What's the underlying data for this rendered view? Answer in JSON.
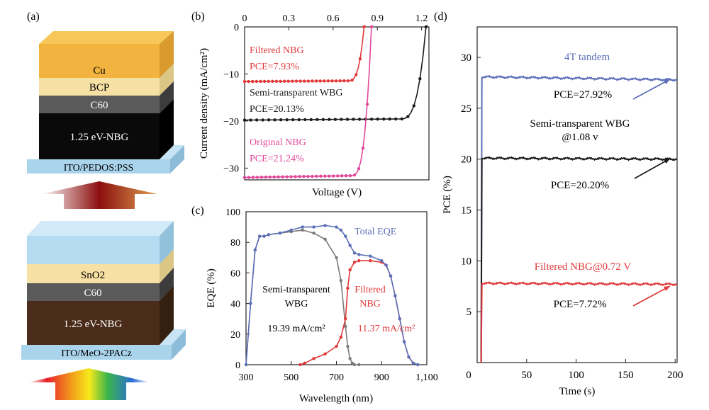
{
  "panels": {
    "a": {
      "label": "(a)",
      "top_stack": {
        "layers": [
          "Cu",
          "BCP",
          "C60",
          "1.25 eV-NBG"
        ],
        "substrate": "ITO/PEDOS:PSS"
      },
      "bottom_stack": {
        "layers": [
          "SnO2",
          "C60",
          "1.25 eV-NBG"
        ],
        "substrate": "ITO/MeO-2PACz"
      }
    },
    "b": {
      "label": "(b)"
    },
    "c": {
      "label": "(c)"
    },
    "d": {
      "label": "(d)"
    }
  },
  "colors": {
    "red": "#e0393a",
    "pink": "#e0489a",
    "black": "#1a1a1a",
    "gray": "#7a7a7a",
    "blue": "#5b6fb8",
    "cu": "#f2b43f",
    "bcp": "#f6e0a4",
    "c60": "#555555",
    "nbg_top": "#0a0a0a",
    "nbg_bottom": "#4b2c1a",
    "ito": "#a9d4ec"
  },
  "chart_data": [
    {
      "id": "b",
      "type": "line",
      "xlabel": "Voltage (V)",
      "ylabel": "Current density (mA/cm²)",
      "xlim": [
        0,
        1.25
      ],
      "ylim": [
        -32.5,
        0
      ],
      "xticks": [
        0,
        0.3,
        0.6,
        0.9,
        1.2
      ],
      "xtick_labels": [
        "0",
        "0.3",
        "0.6",
        "0.9",
        "1.2"
      ],
      "yticks": [
        0,
        -10,
        -20,
        -30
      ],
      "ytick_labels": [
        "0",
        "−10",
        "−20",
        "−30"
      ],
      "series": [
        {
          "name": "Filtered NBG",
          "pce": "PCE=7.93%",
          "jsc": -11.6,
          "voc": 0.81,
          "knee": 0.7,
          "color": "red"
        },
        {
          "name": "Semi-transparent WBG",
          "pce": "PCE=20.13%",
          "jsc": -19.8,
          "voc": 1.23,
          "knee": 1.05,
          "color": "black"
        },
        {
          "name": "Original NBG",
          "pce": "PCE=21.24%",
          "jsc": -32.0,
          "voc": 0.86,
          "knee": 0.72,
          "color": "pink"
        }
      ]
    },
    {
      "id": "c",
      "type": "line",
      "xlabel": "Wavelength (nm)",
      "ylabel": "EQE (%)",
      "xlim": [
        300,
        1100
      ],
      "ylim": [
        0,
        100
      ],
      "xticks": [
        300,
        500,
        700,
        900,
        1100
      ],
      "xtick_labels": [
        "300",
        "500",
        "700",
        "900",
        "1,100"
      ],
      "yticks": [
        0,
        20,
        40,
        60,
        80,
        100
      ],
      "ytick_labels": [
        "0",
        "20",
        "40",
        "60",
        "80",
        "100"
      ],
      "annotations": {
        "total": "Total EQE",
        "wbg_line1": "Semi-transparent",
        "wbg_line2": "WBG",
        "wbg_jsc": "19.39 mA/cm²",
        "nbg_line1": "Filtered",
        "nbg_line2": "NBG",
        "nbg_jsc": "11.37 mA/cm²"
      },
      "series": [
        {
          "name": "Semi-transparent WBG",
          "color": "gray",
          "x": [
            300,
            320,
            340,
            360,
            380,
            400,
            450,
            500,
            550,
            600,
            650,
            700,
            720,
            740,
            750,
            760,
            770,
            780,
            800
          ],
          "y": [
            0,
            40,
            75,
            84,
            84,
            85,
            86,
            87,
            88,
            86,
            82,
            70,
            55,
            25,
            12,
            4,
            1,
            0,
            0
          ]
        },
        {
          "name": "Filtered NBG",
          "color": "red",
          "x": [
            540,
            560,
            600,
            650,
            700,
            720,
            740,
            750,
            760,
            780,
            800,
            850,
            900,
            920,
            940,
            960,
            980,
            1000,
            1020,
            1040,
            1060
          ],
          "y": [
            0,
            1,
            4,
            7,
            12,
            18,
            30,
            50,
            62,
            67,
            68,
            68,
            67,
            65,
            58,
            45,
            30,
            15,
            5,
            1,
            0
          ]
        },
        {
          "name": "Total EQE",
          "color": "blue",
          "x": [
            300,
            320,
            340,
            360,
            380,
            400,
            450,
            500,
            550,
            600,
            650,
            700,
            720,
            740,
            760,
            780,
            800,
            850,
            900,
            920,
            940,
            960,
            980,
            1000,
            1020,
            1040,
            1060
          ],
          "y": [
            0,
            40,
            75,
            84,
            84,
            85,
            86,
            88,
            90,
            90,
            91,
            90,
            88,
            84,
            78,
            73,
            72,
            71,
            68,
            65,
            58,
            45,
            30,
            15,
            5,
            1,
            0
          ]
        }
      ]
    },
    {
      "id": "d",
      "type": "line",
      "xlabel": "Time (s)",
      "ylabel": "PCE (%)",
      "xlim": [
        0,
        202
      ],
      "ylim": [
        0,
        33
      ],
      "xticks": [
        0,
        50,
        100,
        150,
        200
      ],
      "xtick_labels": [
        "0",
        "50",
        "100",
        "150",
        "200"
      ],
      "yticks": [
        5,
        10,
        15,
        20,
        25,
        30
      ],
      "ytick_labels": [
        "5",
        "10",
        "15",
        "20",
        "25",
        "30"
      ],
      "annotations": {
        "tandem_title": "4T tandem",
        "tandem_pce": "PCE=27.92%",
        "wbg_title_line1": "Semi-transparent WBG",
        "wbg_title_line2": "@1.08 v",
        "wbg_pce": "PCE=20.20%",
        "nbg_title": "Filtered NBG@0.72 V",
        "nbg_pce": "PCE=7.72%"
      },
      "series": [
        {
          "name": "4T tandem",
          "color": "blue",
          "start": 4,
          "level": 28.1,
          "end_level": 27.8
        },
        {
          "name": "Semi-transparent WBG",
          "color": "black",
          "start": 4,
          "level": 20.1,
          "end_level": 20.0
        },
        {
          "name": "Filtered NBG",
          "color": "red",
          "start": 4,
          "level": 7.8,
          "end_level": 7.7
        }
      ]
    }
  ]
}
